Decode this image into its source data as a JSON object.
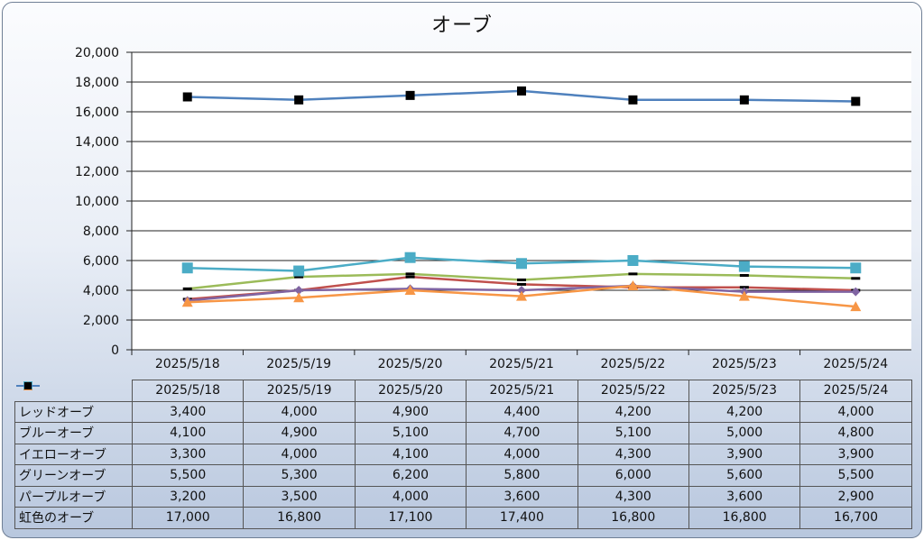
{
  "chart_data": {
    "type": "line",
    "title": "オーブ",
    "categories": [
      "2025/5/18",
      "2025/5/19",
      "2025/5/20",
      "2025/5/21",
      "2025/5/22",
      "2025/5/23",
      "2025/5/24"
    ],
    "ylim": [
      0,
      20000
    ],
    "yticks": [
      "0",
      "2,000",
      "4,000",
      "6,000",
      "8,000",
      "10,000",
      "12,000",
      "14,000",
      "16,000",
      "18,000",
      "20,000"
    ],
    "grid": true,
    "legend": "data-table",
    "series": [
      {
        "name": "レッドオーブ",
        "color": "#c0504d",
        "marker": "dash",
        "values": [
          3400,
          4000,
          4900,
          4400,
          4200,
          4200,
          4000
        ],
        "labels": [
          "3,400",
          "4,000",
          "4,900",
          "4,400",
          "4,200",
          "4,200",
          "4,000"
        ]
      },
      {
        "name": "ブルーオーブ",
        "color": "#9bbb59",
        "marker": "dash",
        "values": [
          4100,
          4900,
          5100,
          4700,
          5100,
          5000,
          4800
        ],
        "labels": [
          "4,100",
          "4,900",
          "5,100",
          "4,700",
          "5,100",
          "5,000",
          "4,800"
        ]
      },
      {
        "name": "イエローオーブ",
        "color": "#8064a2",
        "marker": "diamond",
        "values": [
          3300,
          4000,
          4100,
          4000,
          4300,
          3900,
          3900
        ],
        "labels": [
          "3,300",
          "4,000",
          "4,100",
          "4,000",
          "4,300",
          "3,900",
          "3,900"
        ]
      },
      {
        "name": "グリーンオーブ",
        "color": "#4bacc6",
        "marker": "square",
        "values": [
          5500,
          5300,
          6200,
          5800,
          6000,
          5600,
          5500
        ],
        "labels": [
          "5,500",
          "5,300",
          "6,200",
          "5,800",
          "6,000",
          "5,600",
          "5,500"
        ]
      },
      {
        "name": "パープルオーブ",
        "color": "#f79646",
        "marker": "triangle",
        "values": [
          3200,
          3500,
          4000,
          3600,
          4300,
          3600,
          2900
        ],
        "labels": [
          "3,200",
          "3,500",
          "4,000",
          "3,600",
          "4,300",
          "3,600",
          "2,900"
        ]
      },
      {
        "name": "虹色のオーブ",
        "color": "#4f81bd",
        "marker": "blacksquare",
        "values": [
          17000,
          16800,
          17100,
          17400,
          16800,
          16800,
          16700
        ],
        "labels": [
          "17,000",
          "16,800",
          "17,100",
          "17,400",
          "16,800",
          "16,800",
          "16,700"
        ]
      }
    ]
  }
}
